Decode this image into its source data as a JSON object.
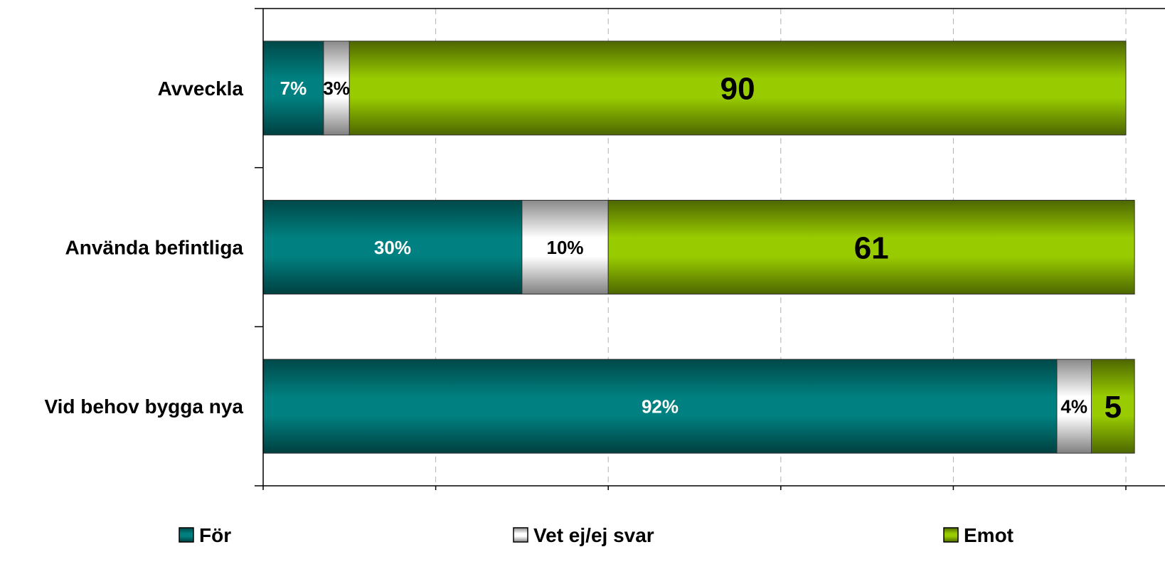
{
  "chart_data": {
    "type": "bar",
    "orientation": "horizontal",
    "stacked": true,
    "categories": [
      "Avveckla",
      "Använda befintliga",
      "Vid behov bygga nya"
    ],
    "series": [
      {
        "name": "För",
        "values": [
          7,
          30,
          92
        ],
        "labels": [
          "7%",
          "30%",
          "92%"
        ],
        "color": "#008080"
      },
      {
        "name": "Vet ej/ej svar",
        "values": [
          3,
          10,
          4
        ],
        "labels": [
          "3%",
          "10%",
          "4%"
        ],
        "color": "#ffffff"
      },
      {
        "name": "Emot",
        "values": [
          90,
          61,
          5
        ],
        "labels": [
          "90",
          "61",
          "5"
        ],
        "color": "#99cc00"
      }
    ],
    "xlim": [
      0,
      100
    ],
    "grid": true,
    "legend_position": "bottom"
  }
}
